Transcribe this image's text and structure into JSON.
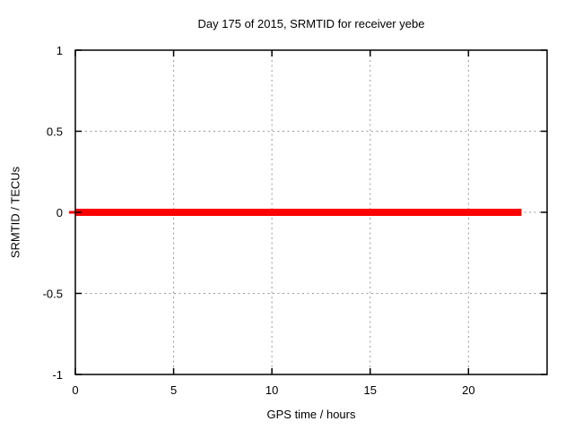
{
  "chart_data": {
    "type": "line",
    "title": "Day 175 of 2015, SRMTID for receiver yebe",
    "xlabel": "GPS time / hours",
    "ylabel": "SRMTID / TECUs",
    "xlim": [
      0,
      24
    ],
    "ylim": [
      -1,
      1
    ],
    "xticks": [
      {
        "v": 0,
        "label": "0"
      },
      {
        "v": 5,
        "label": "5"
      },
      {
        "v": 10,
        "label": "10"
      },
      {
        "v": 15,
        "label": "15"
      },
      {
        "v": 20,
        "label": "20"
      }
    ],
    "yticks": [
      {
        "v": -1,
        "label": "-1"
      },
      {
        "v": -0.5,
        "label": "-0.5"
      },
      {
        "v": 0,
        "label": "0"
      },
      {
        "v": 0.5,
        "label": "0.5"
      },
      {
        "v": 1,
        "label": "1"
      }
    ],
    "grid": true,
    "grid_style": "dashed",
    "legend": "none",
    "series": [
      {
        "name": "SRMTID",
        "color": "#ff0000",
        "linewidth": 8,
        "x": [
          0,
          22.7
        ],
        "y": [
          0,
          0
        ]
      }
    ],
    "colors": {
      "background": "#ffffff",
      "axis": "#000000",
      "grid": "#999999",
      "text": "#000000"
    }
  }
}
